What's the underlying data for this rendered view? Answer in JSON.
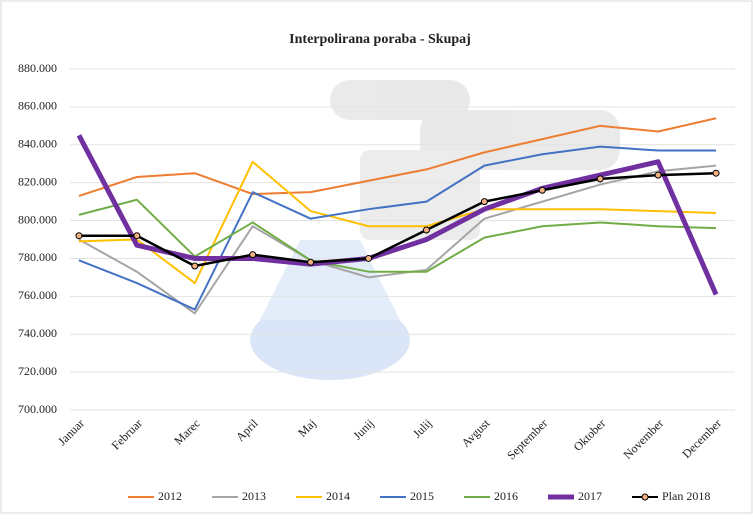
{
  "chart_data": {
    "type": "line",
    "title": "Interpolirana  poraba  - Skupaj",
    "categories": [
      "Januar",
      "Februar",
      "Marec",
      "April",
      "Maj",
      "Junij",
      "Julij",
      "Avgust",
      "September",
      "Oktober",
      "November",
      "December"
    ],
    "series": [
      {
        "name": "2012",
        "color": "#ed7d31",
        "values": [
          813000,
          823000,
          825000,
          814000,
          815000,
          821000,
          827000,
          836000,
          843000,
          850000,
          847000,
          854000
        ]
      },
      {
        "name": "2013",
        "color": "#a5a5a5",
        "values": [
          790000,
          773000,
          751000,
          797000,
          779000,
          770000,
          774000,
          801000,
          810000,
          819000,
          826000,
          829000
        ]
      },
      {
        "name": "2014",
        "color": "#ffc000",
        "values": [
          789000,
          790000,
          767000,
          831000,
          805000,
          797000,
          797000,
          806000,
          806000,
          806000,
          805000,
          804000
        ]
      },
      {
        "name": "2015",
        "color": "#4472c4",
        "values": [
          779000,
          767000,
          753000,
          815000,
          801000,
          806000,
          810000,
          829000,
          835000,
          839000,
          837000,
          837000
        ]
      },
      {
        "name": "2016",
        "color": "#70ad47",
        "values": [
          803000,
          811000,
          781000,
          799000,
          779000,
          773000,
          773000,
          791000,
          797000,
          799000,
          797000,
          796000
        ]
      },
      {
        "name": "2017",
        "color": "#7030a0",
        "values": [
          845000,
          787000,
          780000,
          780000,
          777000,
          780000,
          790000,
          806000,
          817000,
          824000,
          831000,
          761000
        ]
      },
      {
        "name": "Plan 2018",
        "color": "#000000",
        "values": [
          792000,
          792000,
          776000,
          782000,
          778000,
          780000,
          795000,
          810000,
          816000,
          822000,
          824000,
          825000
        ]
      }
    ],
    "ylim": [
      700000,
      880000
    ],
    "yticks": [
      {
        "value": 700000,
        "label": "700.000"
      },
      {
        "value": 720000,
        "label": "720.000"
      },
      {
        "value": 740000,
        "label": "740.000"
      },
      {
        "value": 760000,
        "label": "760.000"
      },
      {
        "value": 780000,
        "label": "780.000"
      },
      {
        "value": 800000,
        "label": "800.000"
      },
      {
        "value": 820000,
        "label": "820.000"
      },
      {
        "value": 840000,
        "label": "840.000"
      },
      {
        "value": 860000,
        "label": "860.000"
      },
      {
        "value": 880000,
        "label": "880.000"
      }
    ],
    "grid": true,
    "legend": "bottom"
  }
}
